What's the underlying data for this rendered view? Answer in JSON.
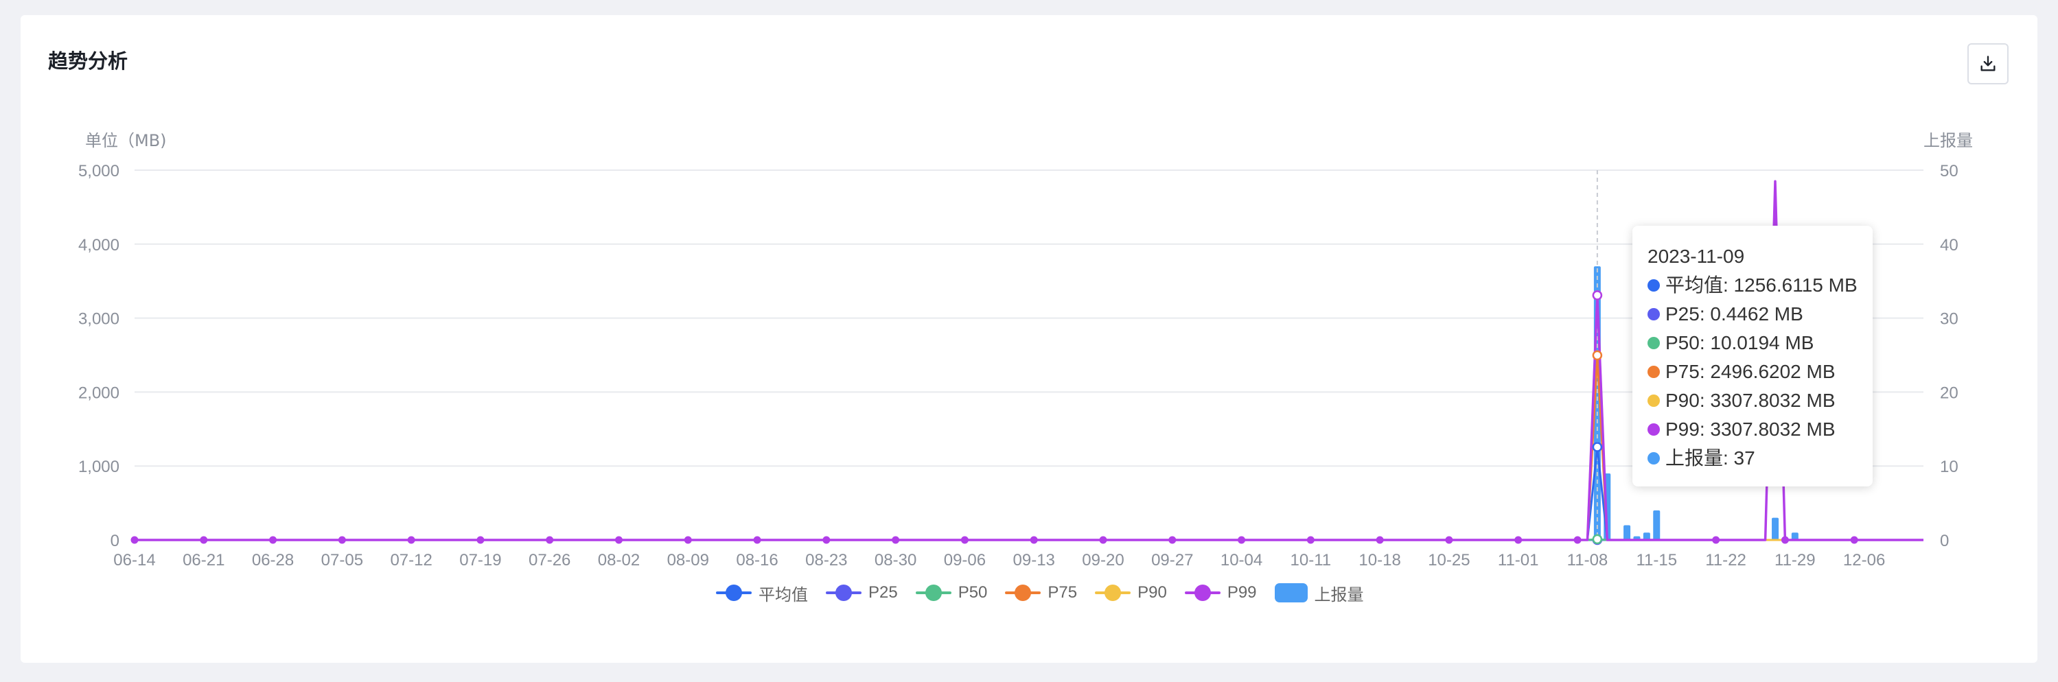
{
  "card": {
    "title": "趋势分析",
    "download_icon": "download-icon"
  },
  "colors": {
    "avg": "#2f6bf0",
    "p25": "#5b5cf0",
    "p50": "#52c08b",
    "p75": "#ef7d32",
    "p90": "#f3c244",
    "p99": "#b13ee8",
    "count": "#4a9ef5"
  },
  "chart_data": {
    "type": "line",
    "left_axis_label": "单位（MB)",
    "right_axis_label": "上报量",
    "y_left_ticks": [
      "5,000",
      "4,000",
      "3,000",
      "2,000",
      "1,000",
      "0"
    ],
    "y_right_ticks": [
      "50",
      "40",
      "30",
      "20",
      "10",
      "0"
    ],
    "ylim_left": [
      0,
      5000
    ],
    "ylim_right": [
      0,
      50
    ],
    "x_ticks": [
      "06-14",
      "06-21",
      "06-28",
      "07-05",
      "07-12",
      "07-19",
      "07-26",
      "08-02",
      "08-09",
      "08-16",
      "08-23",
      "08-30",
      "09-06",
      "09-13",
      "09-20",
      "09-27",
      "10-04",
      "10-11",
      "10-18",
      "10-25",
      "11-01",
      "11-08",
      "11-15",
      "11-22",
      "11-29",
      "12-06"
    ],
    "x_range": [
      "2023-06-14",
      "2023-12-12"
    ],
    "line_series": [
      {
        "name": "平均值",
        "points": [
          [
            "2023-11-08",
            0
          ],
          [
            "2023-11-09",
            1256.6115
          ],
          [
            "2023-11-10",
            0
          ]
        ]
      },
      {
        "name": "P25",
        "points": [
          [
            "2023-11-08",
            0
          ],
          [
            "2023-11-09",
            0.4462
          ],
          [
            "2023-11-10",
            0
          ]
        ]
      },
      {
        "name": "P50",
        "points": [
          [
            "2023-11-08",
            0
          ],
          [
            "2023-11-09",
            10.0194
          ],
          [
            "2023-11-10",
            0
          ]
        ]
      },
      {
        "name": "P75",
        "points": [
          [
            "2023-11-08",
            0
          ],
          [
            "2023-11-09",
            2496.6202
          ],
          [
            "2023-11-10",
            0
          ]
        ]
      },
      {
        "name": "P90",
        "points": [
          [
            "2023-11-08",
            0
          ],
          [
            "2023-11-09",
            3307.8032
          ],
          [
            "2023-11-10",
            0
          ]
        ]
      },
      {
        "name": "P99",
        "points": [
          [
            "2023-11-08",
            0
          ],
          [
            "2023-11-09",
            3307.8032
          ],
          [
            "2023-11-10",
            0
          ],
          [
            "2023-11-26",
            0
          ],
          [
            "2023-11-27",
            4850
          ],
          [
            "2023-11-28",
            0
          ]
        ]
      }
    ],
    "bar_series": {
      "name": "上报量",
      "points": [
        [
          "2023-11-09",
          37
        ],
        [
          "2023-11-10",
          9
        ],
        [
          "2023-11-12",
          2
        ],
        [
          "2023-11-13",
          0.5
        ],
        [
          "2023-11-14",
          1
        ],
        [
          "2023-11-15",
          4
        ],
        [
          "2023-11-27",
          3
        ],
        [
          "2023-11-29",
          1
        ]
      ]
    },
    "marker_dates": [
      "2023-06-14",
      "2023-06-21",
      "2023-06-28",
      "2023-07-05",
      "2023-07-12",
      "2023-07-19",
      "2023-07-26",
      "2023-08-02",
      "2023-08-09",
      "2023-08-16",
      "2023-08-23",
      "2023-08-30",
      "2023-09-06",
      "2023-09-13",
      "2023-09-20",
      "2023-09-27",
      "2023-10-04",
      "2023-10-11",
      "2023-10-18",
      "2023-10-25",
      "2023-11-01",
      "2023-11-07",
      "2023-11-21",
      "2023-11-28",
      "2023-12-05"
    ],
    "hover_date": "2023-11-09",
    "grid": true,
    "legend_position": "bottom-center"
  },
  "tooltip": {
    "date": "2023-11-09",
    "rows": [
      {
        "label": "平均值: 1256.6115 MB",
        "color": "#2f6bf0"
      },
      {
        "label": "P25: 0.4462 MB",
        "color": "#5b5cf0"
      },
      {
        "label": "P50: 10.0194 MB",
        "color": "#52c08b"
      },
      {
        "label": "P75: 2496.6202 MB",
        "color": "#ef7d32"
      },
      {
        "label": "P90: 3307.8032 MB",
        "color": "#f3c244"
      },
      {
        "label": "P99: 3307.8032 MB",
        "color": "#b13ee8"
      },
      {
        "label": "上报量: 37",
        "color": "#4a9ef5"
      }
    ]
  },
  "legend": [
    {
      "label": "平均值",
      "color": "#2f6bf0",
      "kind": "line"
    },
    {
      "label": "P25",
      "color": "#5b5cf0",
      "kind": "line"
    },
    {
      "label": "P50",
      "color": "#52c08b",
      "kind": "line"
    },
    {
      "label": "P75",
      "color": "#ef7d32",
      "kind": "line"
    },
    {
      "label": "P90",
      "color": "#f3c244",
      "kind": "line"
    },
    {
      "label": "P99",
      "color": "#b13ee8",
      "kind": "line"
    },
    {
      "label": "上报量",
      "color": "#4a9ef5",
      "kind": "bar"
    }
  ]
}
